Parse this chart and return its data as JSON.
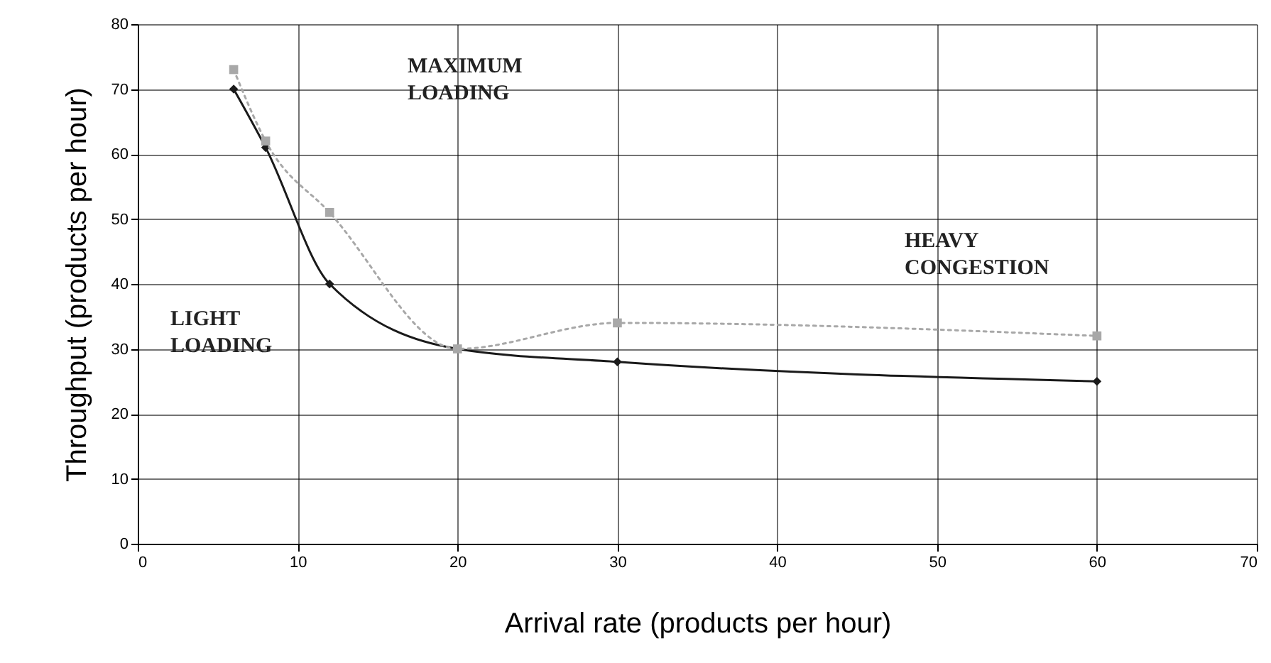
{
  "chart_data": {
    "type": "line",
    "xlabel": "Arrival rate (products per hour)",
    "ylabel": "Throughput (products per hour)",
    "x": [
      6,
      8,
      12,
      20,
      30,
      60
    ],
    "series": [
      {
        "color": "#1a1a1a",
        "values": [
          70,
          61,
          40,
          30,
          28,
          25
        ],
        "marker": "diamond",
        "line_style": "solid"
      },
      {
        "color": "#a8a8a8",
        "values": [
          73,
          62,
          51,
          30,
          34,
          32
        ],
        "marker": "square",
        "line_style": "dotted"
      }
    ],
    "xlim": [
      0,
      70
    ],
    "xticks": [
      0,
      10,
      20,
      30,
      40,
      50,
      60,
      70
    ],
    "ylim": [
      0,
      80
    ],
    "yticks": [
      0,
      10,
      20,
      30,
      40,
      50,
      60,
      70,
      80
    ],
    "grid": true,
    "annotations": [
      "MAXIMUM LOADING",
      "LIGHT LOADING",
      "HEAVY CONGESTION"
    ]
  }
}
